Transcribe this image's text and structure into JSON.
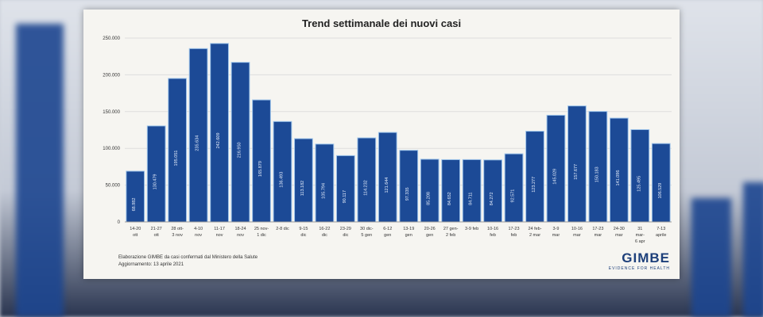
{
  "chart_data": {
    "type": "bar",
    "title": "Trend settimanale dei nuovi casi",
    "xlabel": "",
    "ylabel": "",
    "ylim": [
      0,
      250000
    ],
    "yticks": [
      "0",
      "50.000",
      "100.000",
      "150.000",
      "200.000",
      "250.000"
    ],
    "ytick_values": [
      0,
      50000,
      100000,
      150000,
      200000,
      250000
    ],
    "grid": true,
    "categories": [
      [
        "14-20",
        "ott"
      ],
      [
        "21-27",
        "ott"
      ],
      [
        "28 ott-",
        "3 nov"
      ],
      [
        "4-10",
        "nov"
      ],
      [
        "11-17",
        "nov"
      ],
      [
        "18-24",
        "nov"
      ],
      [
        "25 nov-",
        "1 dic"
      ],
      [
        "2-8 dic",
        ""
      ],
      [
        "9-15",
        "dic"
      ],
      [
        "16-22",
        "dic"
      ],
      [
        "23-29",
        "dic"
      ],
      [
        "30 dic-",
        "5 gen"
      ],
      [
        "6-12",
        "gen"
      ],
      [
        "13-19",
        "gen"
      ],
      [
        "20-26",
        "gen"
      ],
      [
        "27 gen-",
        "2 feb"
      ],
      [
        "3-9 feb",
        ""
      ],
      [
        "10-16",
        "feb"
      ],
      [
        "17-23",
        "feb"
      ],
      [
        "24 feb-",
        "2 mar"
      ],
      [
        "3-9",
        "mar"
      ],
      [
        "10-16",
        "mar"
      ],
      [
        "17-23",
        "mar"
      ],
      [
        "24-30",
        "mar"
      ],
      [
        "31",
        "mar-",
        "6 apr"
      ],
      [
        "7-13",
        "aprile"
      ]
    ],
    "values": [
      68982,
      130479,
      195051,
      235634,
      242609,
      216950,
      165879,
      136493,
      113182,
      105794,
      90117,
      114232,
      121644,
      97335,
      85208,
      84652,
      84711,
      84272,
      92571,
      123277,
      145029,
      157677,
      150183,
      141096,
      125495,
      106529
    ],
    "value_labels": [
      "68.982",
      "130.479",
      "195.051",
      "235.634",
      "242.609",
      "216.950",
      "165.879",
      "136.493",
      "113.182",
      "105.794",
      "90.117",
      "114.232",
      "121.644",
      "97.335",
      "85.208",
      "84.652",
      "84.711",
      "84.272",
      "92.571",
      "123.277",
      "145.029",
      "157.677",
      "150.183",
      "141.096",
      "125.495",
      "106.529"
    ],
    "bar_color": "#1c4a96",
    "bar_outline": "#9cc3ea"
  },
  "footer": {
    "source": "Elaborazione GIMBE da casi confermati dal Ministero della Salute",
    "updated": "Aggiornamento: 13 aprile 2021"
  },
  "logo": {
    "name": "GIMBE",
    "tagline": "EVIDENCE FOR HEALTH"
  }
}
